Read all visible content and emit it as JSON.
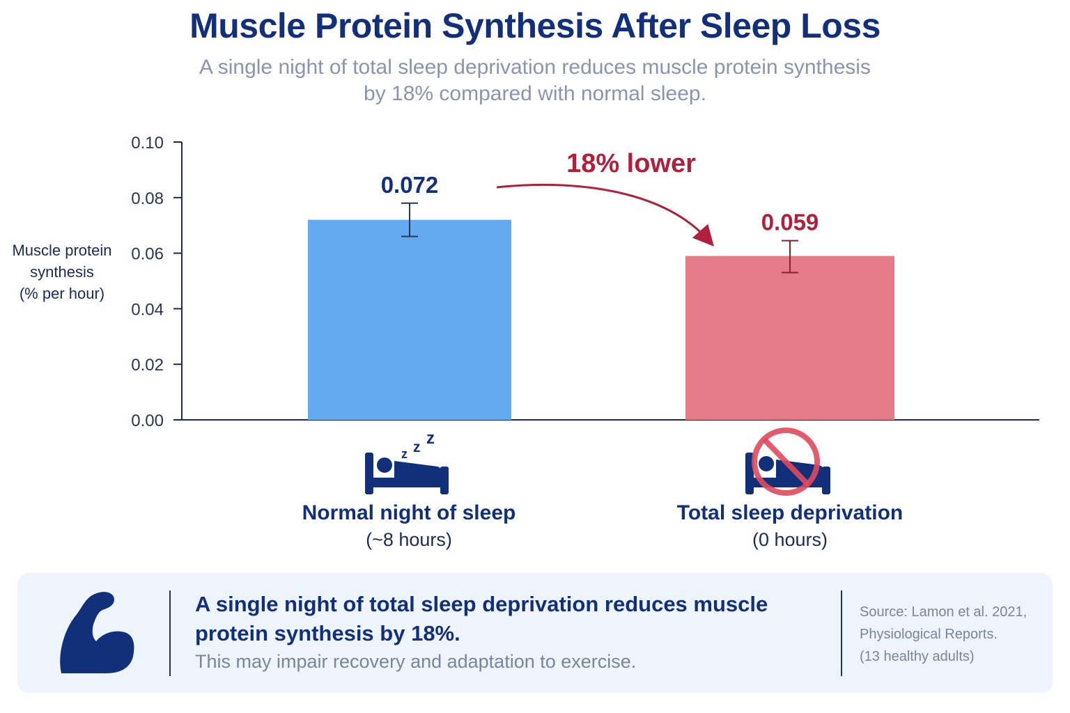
{
  "header": {
    "title": "Muscle Protein Synthesis After Sleep Loss",
    "subtitle_line1": "A single night of total sleep deprivation reduces muscle protein synthesis",
    "subtitle_line2": "by 18% compared with normal sleep."
  },
  "chart_data": {
    "type": "bar",
    "ylabel_lines": [
      "Muscle protein",
      "synthesis",
      "(% per hour)"
    ],
    "ylim": [
      0,
      0.1
    ],
    "y_ticks": [
      "0.00",
      "0.02",
      "0.04",
      "0.06",
      "0.08",
      "0.10"
    ],
    "categories": [
      "Normal night of sleep",
      "Total sleep deprivation"
    ],
    "category_sublabels": [
      "(~8 hours)",
      "(0 hours)"
    ],
    "values": [
      0.072,
      0.059
    ],
    "value_labels": [
      "0.072",
      "0.059"
    ],
    "error_bars": [
      [
        0.066,
        0.078
      ],
      [
        0.053,
        0.0645
      ]
    ],
    "bar_colors": [
      "#63aaf0",
      "#e57b87"
    ],
    "value_label_colors": [
      "#12307a",
      "#b01f3c"
    ],
    "annotation": {
      "text": "18% lower",
      "color": "#b01f3c"
    },
    "grid": false
  },
  "categories_icons": [
    "sleeping-bed-icon",
    "no-sleep-bed-icon"
  ],
  "panel": {
    "icon": "flexed-bicep-icon",
    "headline_line1": "A single night of total sleep deprivation reduces muscle",
    "headline_line2": "protein synthesis by 18%.",
    "subtext": "This may impair recovery and adaptation to exercise.",
    "source_lines": [
      "Source: Lamon et al. 2021,",
      "Physiological Reports.",
      "(13 healthy adults)"
    ]
  },
  "colors": {
    "navy": "#12307a",
    "axis": "#1c2a55",
    "blue_bar": "#63aaf0",
    "red_bar": "#e57b87",
    "accent_red": "#b01f3c",
    "panel_bg": "#eef4fc"
  }
}
